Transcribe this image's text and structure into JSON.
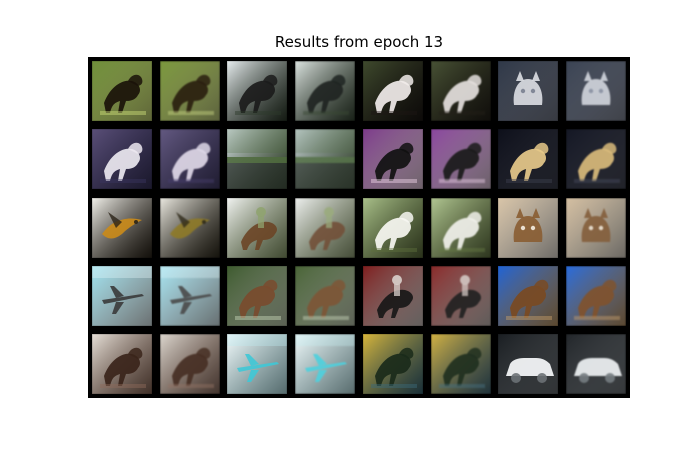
{
  "figure": {
    "title": "Results from epoch 13",
    "background_color": "#000000"
  },
  "grid": {
    "rows": 5,
    "cols": 8,
    "tile_style": "paired original / reconstruction thumbnails",
    "tiles": [
      {
        "subject": "horse",
        "bg": "#6f8f3a",
        "fg": "#1a1209",
        "accent": "#cfe07a",
        "blur": false
      },
      {
        "subject": "horse",
        "bg": "#7b9640",
        "fg": "#2a1f10",
        "accent": "#c9d787",
        "blur": true
      },
      {
        "subject": "horse",
        "bg": "#e8eef0",
        "fg": "#1b1b1b",
        "accent": "#2c3a2a",
        "blur": false
      },
      {
        "subject": "horse",
        "bg": "#dde5e2",
        "fg": "#1f2422",
        "accent": "#394a36",
        "blur": true
      },
      {
        "subject": "horse",
        "bg": "#3f4a2d",
        "fg": "#f1ecea",
        "accent": "#1c1714",
        "blur": false
      },
      {
        "subject": "horse",
        "bg": "#485236",
        "fg": "#e4dfdd",
        "accent": "#242019",
        "blur": true
      },
      {
        "subject": "cat",
        "bg": "#2f3848",
        "fg": "#d9dbe1",
        "accent": "#7a8090",
        "blur": false
      },
      {
        "subject": "cat",
        "bg": "#3a4352",
        "fg": "#cfd3da",
        "accent": "#8a90a0",
        "blur": true
      },
      {
        "subject": "horse",
        "bg": "#5a4f78",
        "fg": "#ece8f0",
        "accent": "#3a3560",
        "blur": false
      },
      {
        "subject": "horse",
        "bg": "#63597f",
        "fg": "#ded8e6",
        "accent": "#463f6a",
        "blur": true
      },
      {
        "subject": "road",
        "bg": "#dfe9f0",
        "fg": "#242a26",
        "accent": "#4d6a3c",
        "blur": false
      },
      {
        "subject": "road",
        "bg": "#d6e1e8",
        "fg": "#2b322d",
        "accent": "#57724a",
        "blur": true
      },
      {
        "subject": "horse",
        "bg": "#7c3a8a",
        "fg": "#111111",
        "accent": "#f2d6ea",
        "blur": false
      },
      {
        "subject": "horse",
        "bg": "#87469a",
        "fg": "#1a1a1a",
        "accent": "#e8cfe4",
        "blur": true
      },
      {
        "subject": "horse",
        "bg": "#0d0f1a",
        "fg": "#e6c98a",
        "accent": "#3e4150",
        "blur": false
      },
      {
        "subject": "horse",
        "bg": "#141723",
        "fg": "#d8bb7e",
        "accent": "#484b5a",
        "blur": true
      },
      {
        "subject": "bird",
        "bg": "#f3f2ec",
        "fg": "#c98a1a",
        "accent": "#2a2318",
        "blur": false
      },
      {
        "subject": "bird",
        "bg": "#eceae2",
        "fg": "#8c7a2c",
        "accent": "#2f2a1c",
        "blur": true
      },
      {
        "subject": "rider",
        "bg": "#f1f3f2",
        "fg": "#6b4526",
        "accent": "#8fa36f",
        "blur": false
      },
      {
        "subject": "rider",
        "bg": "#eef0ef",
        "fg": "#71503a",
        "accent": "#9aab80",
        "blur": true
      },
      {
        "subject": "horse",
        "bg": "#a9c08a",
        "fg": "#f7f7f2",
        "accent": "#5d6f3c",
        "blur": false
      },
      {
        "subject": "horse",
        "bg": "#b3c795",
        "fg": "#f0f0ea",
        "accent": "#667947",
        "blur": true
      },
      {
        "subject": "cat",
        "bg": "#d9c5a8",
        "fg": "#8a5e34",
        "accent": "#f4ede2",
        "blur": false
      },
      {
        "subject": "cat",
        "bg": "#d3bfa2",
        "fg": "#83603f",
        "accent": "#ede5d8",
        "blur": true
      },
      {
        "subject": "plane",
        "bg": "#9fe3f0",
        "fg": "#3a3a3a",
        "accent": "#e9f8fb",
        "blur": false
      },
      {
        "subject": "plane",
        "bg": "#a9e6f2",
        "fg": "#4a4a4a",
        "accent": "#e1f5fa",
        "blur": true
      },
      {
        "subject": "horse",
        "bg": "#3d5a2e",
        "fg": "#7a4b2e",
        "accent": "#c7d6b8",
        "blur": false
      },
      {
        "subject": "horse",
        "bg": "#4a6438",
        "fg": "#7c5638",
        "accent": "#cad6bd",
        "blur": true
      },
      {
        "subject": "rider",
        "bg": "#7e1d1d",
        "fg": "#161616",
        "accent": "#d9d0cc",
        "blur": false
      },
      {
        "subject": "rider",
        "bg": "#862a2a",
        "fg": "#202020",
        "accent": "#d2c6c2",
        "blur": true
      },
      {
        "subject": "horse",
        "bg": "#1f63d6",
        "fg": "#7a4a22",
        "accent": "#c8a06a",
        "blur": false
      },
      {
        "subject": "horse",
        "bg": "#2a6bd8",
        "fg": "#7e5330",
        "accent": "#c59f70",
        "blur": true
      },
      {
        "subject": "horse",
        "bg": "#e6e0d8",
        "fg": "#3a241a",
        "accent": "#8d6b5a",
        "blur": false
      },
      {
        "subject": "horse",
        "bg": "#ddd7cf",
        "fg": "#452f25",
        "accent": "#927466",
        "blur": true
      },
      {
        "subject": "plane",
        "bg": "#f4fbfc",
        "fg": "#3fc8d6",
        "accent": "#bcebf0",
        "blur": false
      },
      {
        "subject": "plane",
        "bg": "#f1f9fa",
        "fg": "#52cfdc",
        "accent": "#c6eef2",
        "blur": true
      },
      {
        "subject": "horse",
        "bg": "#d9b63a",
        "fg": "#1a2a1a",
        "accent": "#3b6a7a",
        "blur": false
      },
      {
        "subject": "horse",
        "bg": "#d2b247",
        "fg": "#213021",
        "accent": "#4a7080",
        "blur": true
      },
      {
        "subject": "car",
        "bg": "#1a1e22",
        "fg": "#f2f4f5",
        "accent": "#6b7176",
        "blur": false
      },
      {
        "subject": "car",
        "bg": "#22262a",
        "fg": "#e9ecee",
        "accent": "#767c81",
        "blur": true
      }
    ]
  }
}
